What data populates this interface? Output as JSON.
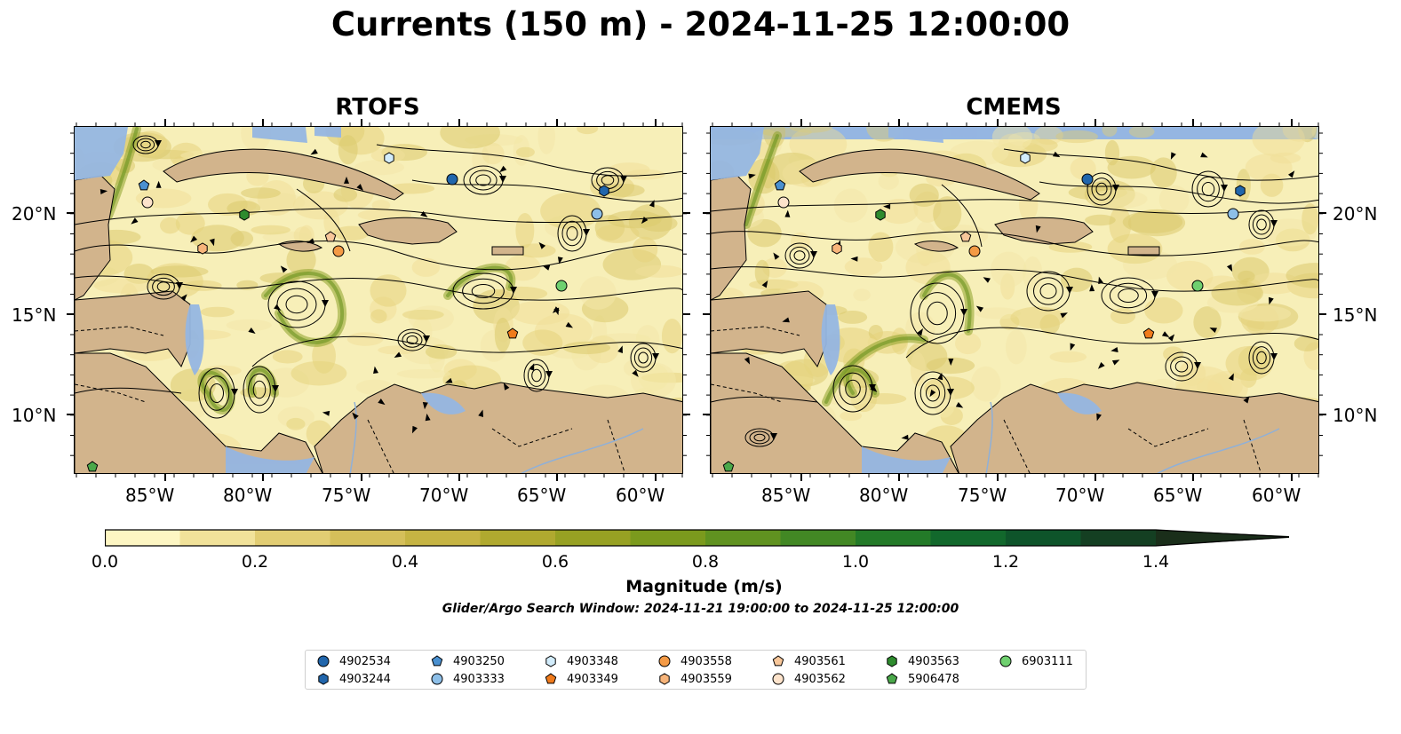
{
  "title": "Currents (150 m) - 2024-11-25 12:00:00",
  "panels": [
    {
      "name": "RTOFS"
    },
    {
      "name": "CMEMS"
    }
  ],
  "lat_labels": [
    "20°N",
    "15°N",
    "10°N"
  ],
  "lon_labels": [
    "85°W",
    "80°W",
    "75°W",
    "70°W",
    "65°W",
    "60°W"
  ],
  "colorbar": {
    "label": "Magnitude (m/s)",
    "ticks": [
      "0.0",
      "0.2",
      "0.4",
      "0.6",
      "0.8",
      "1.0",
      "1.2",
      "1.4"
    ],
    "min": 0.0,
    "max": 1.5,
    "extend": "max",
    "colors": [
      "#fdf6c3",
      "#f1e29a",
      "#e2cd73",
      "#d5bf5a",
      "#c6b443",
      "#b0a92f",
      "#97a123",
      "#7b9a1d",
      "#609220",
      "#428824",
      "#237a28",
      "#12682c",
      "#0e542a",
      "#143f22",
      "#1a2e1a"
    ]
  },
  "subtitle": "Glider/Argo Search Window: 2024-11-21 19:00:00 to 2024-11-25 12:00:00",
  "legend": [
    {
      "id": "4902534",
      "marker": "circle",
      "color": "#2166ac"
    },
    {
      "id": "4903244",
      "marker": "hexagon",
      "color": "#2166ac"
    },
    {
      "id": "4903250",
      "marker": "pentagon",
      "color": "#4a90d0"
    },
    {
      "id": "4903333",
      "marker": "circle",
      "color": "#8dbfe8"
    },
    {
      "id": "4903348",
      "marker": "hexagon",
      "color": "#d2ecfb"
    },
    {
      "id": "4903349",
      "marker": "pentagon",
      "color": "#f07b1c"
    },
    {
      "id": "4903558",
      "marker": "circle",
      "color": "#f49a45"
    },
    {
      "id": "4903559",
      "marker": "hexagon",
      "color": "#f7b47a"
    },
    {
      "id": "4903561",
      "marker": "pentagon",
      "color": "#f8c79a"
    },
    {
      "id": "4903562",
      "marker": "circle",
      "color": "#fde3cb"
    },
    {
      "id": "4903563",
      "marker": "hexagon",
      "color": "#2e8b2e"
    },
    {
      "id": "5906478",
      "marker": "pentagon",
      "color": "#4aa84a"
    },
    {
      "id": "6903111",
      "marker": "circle",
      "color": "#6fd06f"
    }
  ],
  "colors": {
    "land": "#d2b48c",
    "water": "#95b6e2",
    "streamline": "#000000"
  }
}
